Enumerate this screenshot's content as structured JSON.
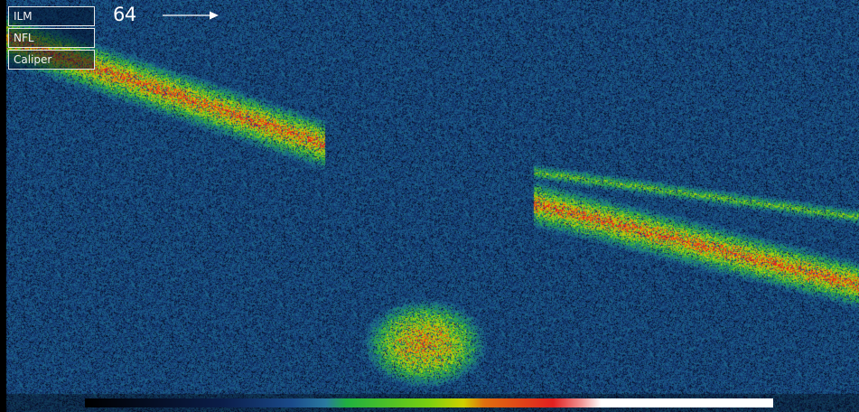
{
  "overlay": {
    "layer_buttons": [
      {
        "id": "ilm",
        "label": "ILM"
      },
      {
        "id": "nfl",
        "label": "NFL"
      },
      {
        "id": "caliper",
        "label": "Caliper"
      }
    ],
    "frame_number": "64",
    "direction_icon": "arrow-right-icon"
  },
  "colors": {
    "background": "#0a1a3a",
    "colorbar": [
      "#000000",
      "#0b1e4a",
      "#1a4a8a",
      "#2a7aa0",
      "#20b040",
      "#7ad010",
      "#d0d000",
      "#e07010",
      "#e02020",
      "#f09090",
      "#ffffff"
    ]
  }
}
